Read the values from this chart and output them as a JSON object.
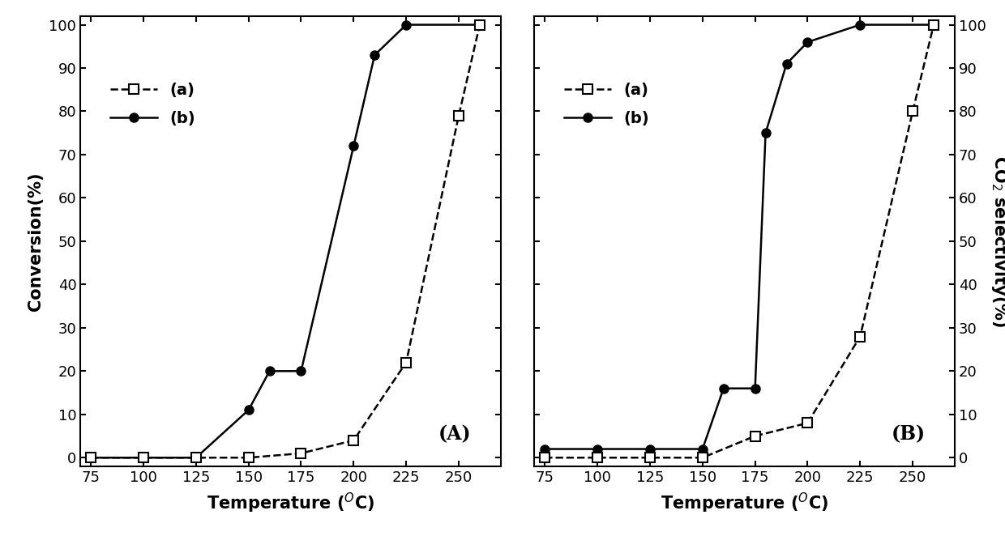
{
  "panel_A": {
    "label": "(A)",
    "ylabel_left": "Conversion(%)",
    "series_a": {
      "x": [
        75,
        100,
        125,
        150,
        175,
        200,
        225,
        250,
        260
      ],
      "y": [
        0,
        0,
        0,
        0,
        1,
        4,
        22,
        79,
        100
      ],
      "label": "(a)",
      "marker": "s",
      "linestyle": "--"
    },
    "series_b": {
      "x": [
        75,
        100,
        125,
        150,
        160,
        175,
        200,
        210,
        225,
        260
      ],
      "y": [
        0,
        0,
        0,
        11,
        20,
        20,
        72,
        93,
        100,
        100
      ],
      "label": "(b)",
      "marker": "o",
      "linestyle": "-"
    }
  },
  "panel_B": {
    "label": "(B)",
    "ylabel_right": "CO$_2$ selectivity(%)",
    "series_a": {
      "x": [
        75,
        100,
        125,
        150,
        175,
        200,
        225,
        250,
        260
      ],
      "y": [
        0,
        0,
        0,
        0,
        5,
        8,
        28,
        80,
        100
      ],
      "label": "(a)",
      "marker": "s",
      "linestyle": "--"
    },
    "series_b": {
      "x": [
        75,
        100,
        125,
        150,
        160,
        175,
        180,
        190,
        200,
        225,
        260
      ],
      "y": [
        2,
        2,
        2,
        2,
        16,
        16,
        75,
        91,
        96,
        100,
        100
      ],
      "label": "(b)",
      "marker": "o",
      "linestyle": "-"
    }
  },
  "xlabel": "Temperature ($^{O}$C)",
  "xlim": [
    70,
    270
  ],
  "xticks": [
    75,
    100,
    125,
    150,
    175,
    200,
    225,
    250
  ],
  "ylim": [
    -2,
    102
  ],
  "yticks": [
    0,
    10,
    20,
    30,
    40,
    50,
    60,
    70,
    80,
    90,
    100
  ],
  "color": "black",
  "linewidth": 1.8,
  "markersize": 8,
  "font_size_label": 15,
  "font_size_tick": 13,
  "font_size_legend": 14,
  "font_size_panel_label": 15
}
